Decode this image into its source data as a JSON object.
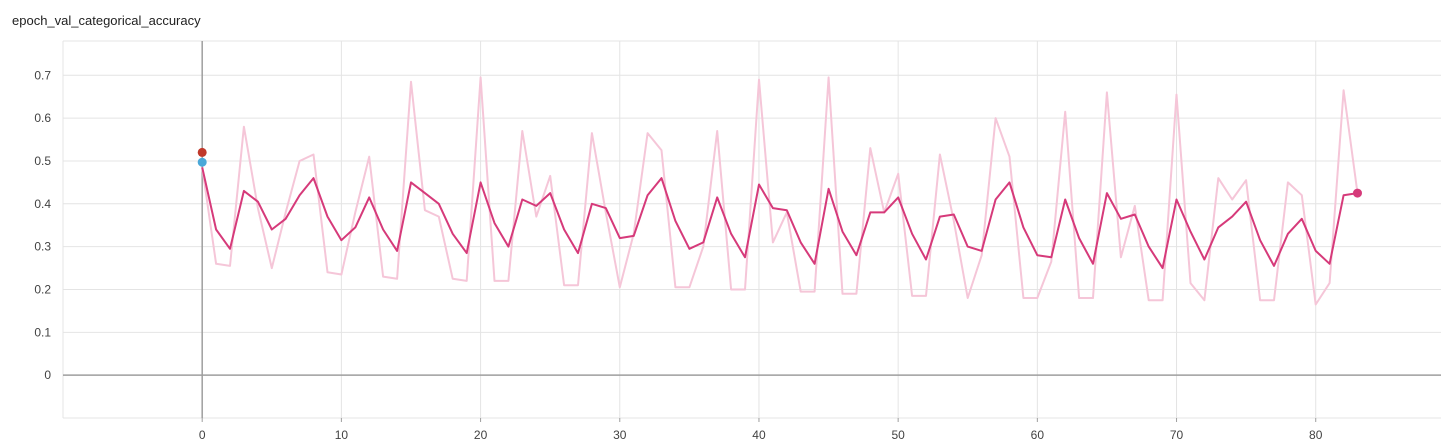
{
  "panel": {
    "title": "epoch_val_categorical_accuracy"
  },
  "chart_data": {
    "type": "line",
    "title": "epoch_val_categorical_accuracy",
    "xlabel": "",
    "ylabel": "",
    "xlim": [
      -10,
      89
    ],
    "ylim": [
      -0.1,
      0.78
    ],
    "x_ticks": [
      0,
      10,
      20,
      30,
      40,
      50,
      60,
      70,
      80
    ],
    "y_ticks": [
      0,
      0.1,
      0.2,
      0.3,
      0.4,
      0.5,
      0.6,
      0.7
    ],
    "grid": true,
    "colors": {
      "smoothed": "#d63a7a",
      "raw": "#f5c6d8",
      "marker_red": "#c0392b",
      "marker_blue": "#4aa8d8",
      "zero_axis": "#9e9e9e",
      "grid": "#e4e4e4"
    },
    "series": [
      {
        "values": [
          0.485,
          0.26,
          0.255,
          0.58,
          0.39,
          0.25,
          0.38,
          0.5,
          0.515,
          0.24,
          0.235,
          0.38,
          0.51,
          0.23,
          0.225,
          0.685,
          0.385,
          0.37,
          0.225,
          0.22,
          0.695,
          0.22,
          0.22,
          0.57,
          0.37,
          0.465,
          0.21,
          0.21,
          0.565,
          0.38,
          0.205,
          0.33,
          0.565,
          0.525,
          0.205,
          0.205,
          0.3,
          0.57,
          0.2,
          0.2,
          0.69,
          0.31,
          0.38,
          0.195,
          0.195,
          0.695,
          0.19,
          0.19,
          0.53,
          0.38,
          0.47,
          0.185,
          0.185,
          0.515,
          0.36,
          0.18,
          0.28,
          0.6,
          0.51,
          0.18,
          0.18,
          0.265,
          0.615,
          0.18,
          0.18,
          0.66,
          0.275,
          0.395,
          0.175,
          0.175,
          0.655,
          0.215,
          0.175,
          0.46,
          0.41,
          0.455,
          0.175,
          0.175,
          0.45,
          0.42,
          0.165,
          0.215,
          0.665,
          0.425
        ]
      },
      {
        "values": [
          0.485,
          0.34,
          0.295,
          0.43,
          0.405,
          0.34,
          0.365,
          0.42,
          0.46,
          0.37,
          0.315,
          0.345,
          0.415,
          0.34,
          0.29,
          0.45,
          0.425,
          0.4,
          0.33,
          0.285,
          0.45,
          0.355,
          0.3,
          0.41,
          0.395,
          0.425,
          0.34,
          0.285,
          0.4,
          0.39,
          0.32,
          0.325,
          0.42,
          0.46,
          0.36,
          0.295,
          0.31,
          0.415,
          0.33,
          0.275,
          0.445,
          0.39,
          0.385,
          0.31,
          0.26,
          0.435,
          0.335,
          0.28,
          0.38,
          0.38,
          0.415,
          0.33,
          0.27,
          0.37,
          0.375,
          0.3,
          0.29,
          0.41,
          0.45,
          0.345,
          0.28,
          0.275,
          0.41,
          0.32,
          0.26,
          0.425,
          0.365,
          0.375,
          0.3,
          0.25,
          0.41,
          0.335,
          0.27,
          0.345,
          0.37,
          0.405,
          0.315,
          0.255,
          0.33,
          0.365,
          0.29,
          0.26,
          0.42,
          0.425
        ]
      }
    ],
    "markers": [
      {
        "x": 0,
        "y": 0.52,
        "color": "#c0392b"
      },
      {
        "x": 0,
        "y": 0.497,
        "color": "#4aa8d8"
      },
      {
        "x": 83,
        "y": 0.425,
        "color": "#d63a7a"
      }
    ]
  }
}
